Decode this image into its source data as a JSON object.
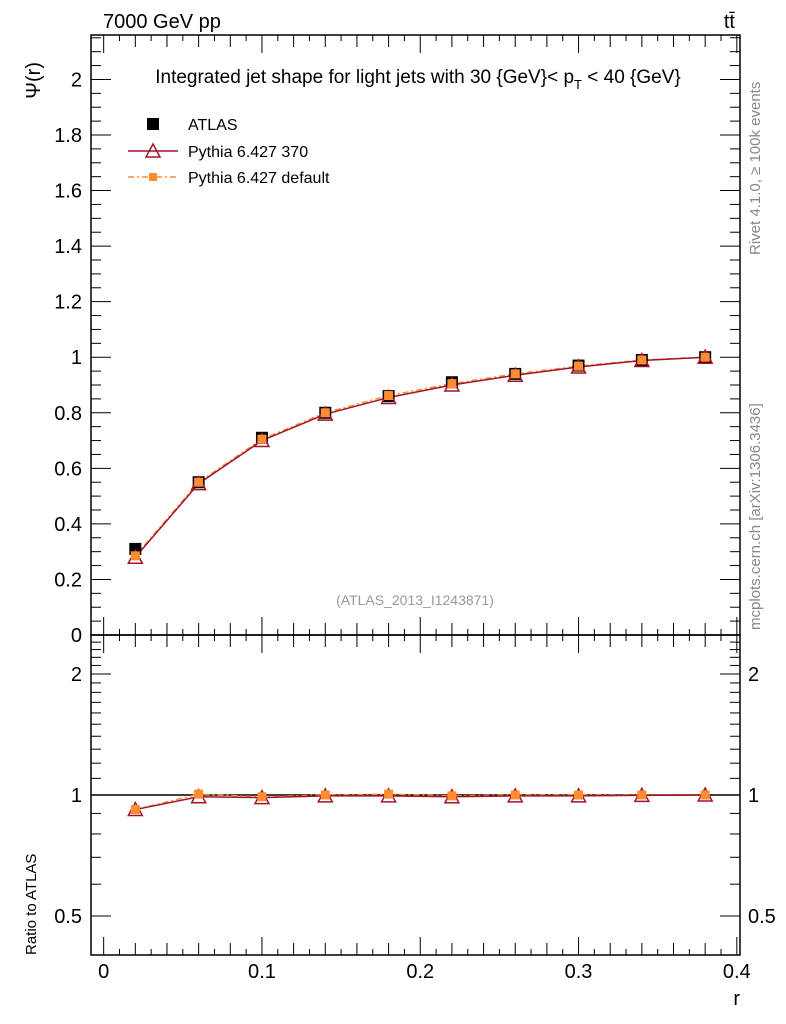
{
  "header": {
    "left": "7000 GeV pp",
    "right": "tt̄"
  },
  "side": {
    "top": "Rivet 4.1.0, ≥ 100k events",
    "bottom": "mcplots.cern.ch [arXiv:1306.3436]"
  },
  "watermark": "(ATLAS_2013_I1243871)",
  "colors": {
    "atlas": "#000000",
    "p370": "#a0142a",
    "pdef": "#ff8c32"
  },
  "chart_data": [
    {
      "type": "line",
      "title": "Integrated jet shape for light jets with 30 {GeV}< p_T < 40 {GeV}",
      "title_parts": {
        "main": "Integrated jet shape for light jets with 30 {GeV}< p",
        "sub": "T",
        "tail": " < 40 {GeV}"
      },
      "ylabel": "Ψ(r)",
      "xlabel": "r",
      "xlim": [
        -0.008,
        0.402
      ],
      "ylim": [
        0,
        2.16
      ],
      "yticks": [
        0,
        0.2,
        0.4,
        0.6,
        0.8,
        1,
        1.2,
        1.4,
        1.6,
        1.8,
        2
      ],
      "ytick_labels": [
        "0",
        "0.2",
        "0.4",
        "0.6",
        "0.8",
        "1",
        "1.2",
        "1.4",
        "1.6",
        "1.8",
        "2"
      ],
      "xticks": [
        0,
        0.1,
        0.2,
        0.3,
        0.4
      ],
      "xtick_labels": [
        "0",
        "0.1",
        "0.2",
        "0.3",
        "0.4"
      ],
      "legend": "top-left",
      "x": [
        0.02,
        0.06,
        0.1,
        0.14,
        0.18,
        0.22,
        0.26,
        0.3,
        0.34,
        0.38
      ],
      "series": [
        {
          "name": "ATLAS",
          "values": [
            0.31,
            0.55,
            0.71,
            0.8,
            0.86,
            0.91,
            0.94,
            0.97,
            0.99,
            1.0
          ]
        },
        {
          "name": "Pythia 6.427 370",
          "values": [
            0.28,
            0.545,
            0.7,
            0.795,
            0.855,
            0.9,
            0.935,
            0.965,
            0.988,
            1.0
          ]
        },
        {
          "name": "Pythia 6.427 default",
          "values": [
            0.285,
            0.55,
            0.705,
            0.8,
            0.862,
            0.905,
            0.94,
            0.968,
            0.99,
            1.0
          ]
        }
      ]
    },
    {
      "type": "line",
      "ylabel": "Ratio to ATLAS",
      "scale": "log",
      "ylim": [
        0.4,
        2.5
      ],
      "yticks": [
        0.5,
        1,
        2
      ],
      "ytick_labels": [
        "0.5",
        "1",
        "2"
      ],
      "x": [
        0.02,
        0.06,
        0.1,
        0.14,
        0.18,
        0.22,
        0.26,
        0.3,
        0.34,
        0.38
      ],
      "series": [
        {
          "name": "Pythia 6.427 370",
          "values": [
            0.92,
            0.99,
            0.985,
            0.995,
            0.995,
            0.99,
            0.995,
            0.995,
            0.998,
            1.0
          ]
        },
        {
          "name": "Pythia 6.427 default",
          "values": [
            0.92,
            1.005,
            0.99,
            1.0,
            1.005,
            0.995,
            1.0,
            1.0,
            1.0,
            1.0
          ]
        }
      ]
    }
  ]
}
